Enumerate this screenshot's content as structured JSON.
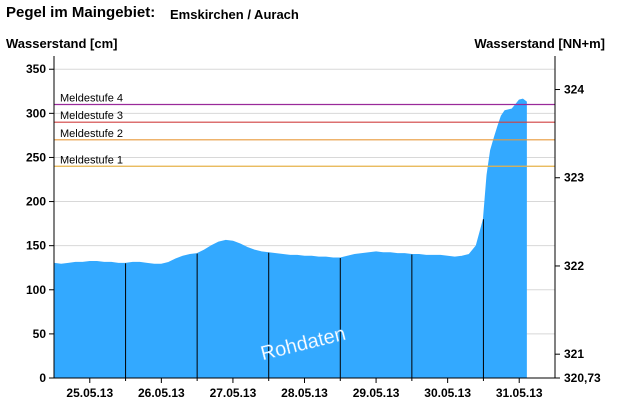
{
  "header": {
    "title": "Pegel im Maingebiet:",
    "subtitle": "Emskirchen / Aurach"
  },
  "chart_data": {
    "type": "area",
    "ylabel": "Wasserstand [cm]",
    "y2label": "Wasserstand [NN+m]",
    "ylim": [
      0,
      365
    ],
    "yticks": [
      0,
      50,
      100,
      150,
      200,
      250,
      300,
      350
    ],
    "y2lim": [
      320.73,
      324.38
    ],
    "y2ticks": [
      {
        "value": 321,
        "label": "321"
      },
      {
        "value": 322,
        "label": "322"
      },
      {
        "value": 323,
        "label": "323"
      },
      {
        "value": 324,
        "label": "324"
      },
      {
        "value": 320.73,
        "label": "320,73"
      }
    ],
    "xlim": [
      0,
      7
    ],
    "xticks": [
      {
        "x": 0.5,
        "label": "25.05.13"
      },
      {
        "x": 1.5,
        "label": "26.05.13"
      },
      {
        "x": 2.5,
        "label": "27.05.13"
      },
      {
        "x": 3.5,
        "label": "28.05.13"
      },
      {
        "x": 4.5,
        "label": "29.05.13"
      },
      {
        "x": 5.5,
        "label": "30.05.13"
      },
      {
        "x": 6.5,
        "label": "31.05.13"
      }
    ],
    "day_boundaries": [
      1,
      2,
      3,
      4,
      5,
      6
    ],
    "series": [
      {
        "color": "#33a9ff",
        "x": [
          0,
          0.1,
          0.2,
          0.3,
          0.4,
          0.5,
          0.6,
          0.7,
          0.8,
          0.9,
          1.0,
          1.1,
          1.2,
          1.3,
          1.4,
          1.5,
          1.6,
          1.7,
          1.8,
          1.9,
          2.0,
          2.1,
          2.2,
          2.3,
          2.4,
          2.5,
          2.6,
          2.7,
          2.8,
          2.9,
          3.0,
          3.1,
          3.2,
          3.3,
          3.4,
          3.5,
          3.6,
          3.7,
          3.8,
          3.9,
          4.0,
          4.1,
          4.2,
          4.3,
          4.4,
          4.5,
          4.6,
          4.7,
          4.8,
          4.9,
          5.0,
          5.1,
          5.2,
          5.3,
          5.4,
          5.5,
          5.6,
          5.7,
          5.8,
          5.9,
          6.0,
          6.05,
          6.1,
          6.15,
          6.2,
          6.25,
          6.3,
          6.35,
          6.4,
          6.45,
          6.5,
          6.55,
          6.6
        ],
        "values": [
          130,
          129,
          130,
          131,
          131,
          132,
          132,
          131,
          131,
          130,
          130,
          131,
          131,
          130,
          129,
          129,
          131,
          135,
          138,
          140,
          141,
          145,
          150,
          154,
          156,
          155,
          152,
          148,
          145,
          143,
          142,
          141,
          140,
          139,
          139,
          138,
          138,
          137,
          137,
          136,
          136,
          138,
          140,
          141,
          142,
          143,
          142,
          142,
          141,
          141,
          140,
          140,
          139,
          139,
          139,
          138,
          137,
          138,
          140,
          150,
          180,
          230,
          258,
          272,
          285,
          297,
          303,
          304,
          305,
          310,
          315,
          316,
          313
        ]
      }
    ],
    "thresholds": [
      {
        "label": "Meldestufe 1",
        "value": 240,
        "color": "#e6b24a"
      },
      {
        "label": "Meldestufe 2",
        "value": 270,
        "color": "#e89a3c"
      },
      {
        "label": "Meldestufe 3",
        "value": 290,
        "color": "#d04040"
      },
      {
        "label": "Meldestufe 4",
        "value": 310,
        "color": "#9a2a9a"
      }
    ],
    "watermark": "Rohdaten",
    "grid": true
  }
}
